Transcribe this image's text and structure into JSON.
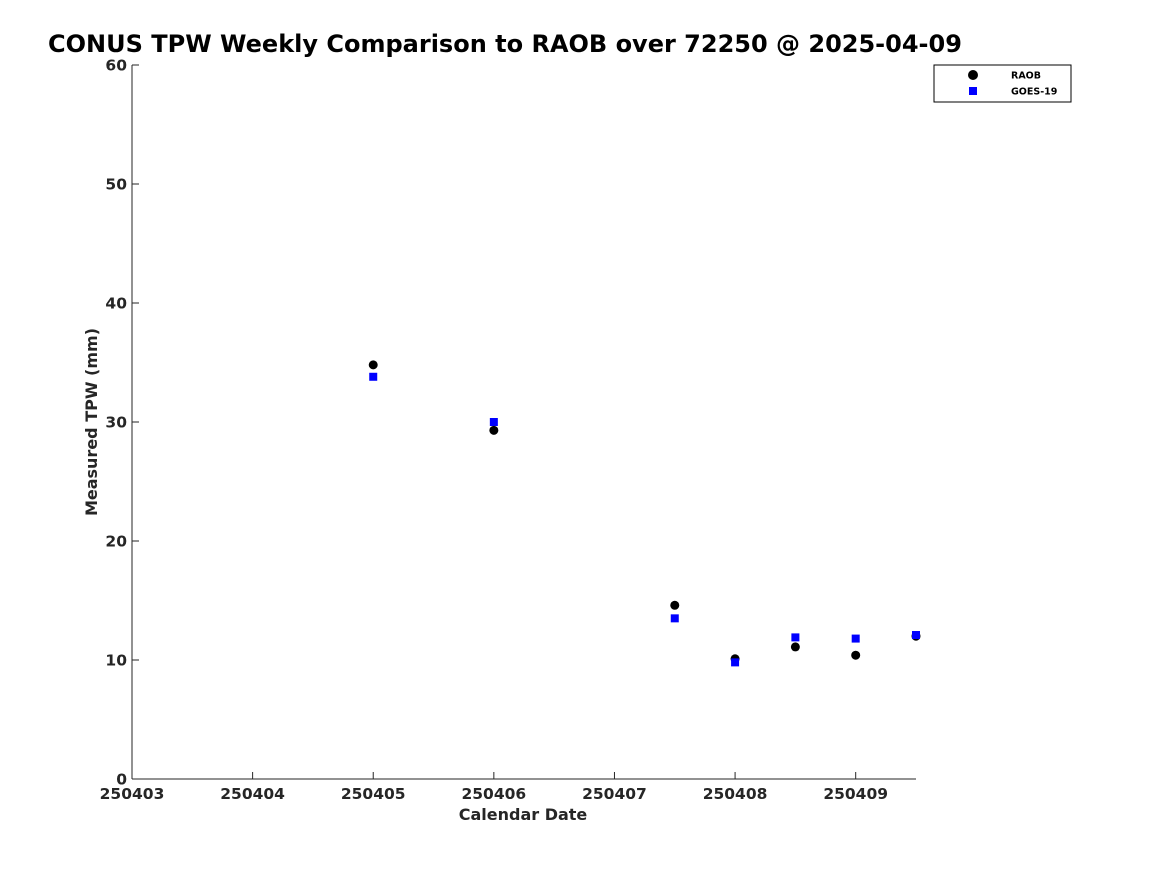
{
  "chart_data": {
    "type": "scatter",
    "title": "CONUS TPW Weekly Comparison to RAOB over 72250 @ 2025-04-09",
    "xlabel": "Calendar Date",
    "ylabel": "Measured TPW (mm)",
    "xlim": [
      250403,
      250409.5
    ],
    "ylim": [
      0,
      60
    ],
    "xticks": [
      250403,
      250404,
      250405,
      250406,
      250407,
      250408,
      250409
    ],
    "xtick_labels": [
      "250403",
      "250404",
      "250405",
      "250406",
      "250407",
      "250408",
      "250409"
    ],
    "yticks": [
      0,
      10,
      20,
      30,
      40,
      50,
      60
    ],
    "ytick_labels": [
      "0",
      "10",
      "20",
      "30",
      "40",
      "50",
      "60"
    ],
    "grid": false,
    "legend_position": "top-right",
    "series": [
      {
        "name": "RAOB",
        "marker": "circle",
        "color": "#000000",
        "x": [
          250405,
          250406,
          250407.5,
          250408,
          250408.5,
          250409,
          250409.5
        ],
        "y": [
          34.8,
          29.3,
          14.6,
          10.1,
          11.1,
          10.4,
          12.0
        ]
      },
      {
        "name": "GOES-19",
        "marker": "square",
        "color": "#0000ff",
        "x": [
          250405,
          250406,
          250407.5,
          250408,
          250408.5,
          250409,
          250409.5
        ],
        "y": [
          33.8,
          30.0,
          13.5,
          9.8,
          11.9,
          11.8,
          12.1
        ]
      }
    ]
  }
}
